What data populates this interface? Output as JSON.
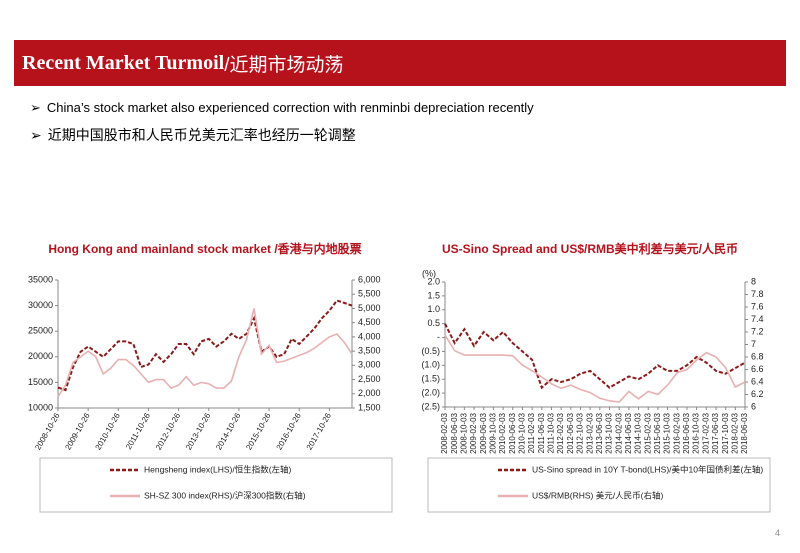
{
  "header": {
    "title_en": "Recent Market Turmoil",
    "title_cn": " /近期市场动荡"
  },
  "bullets": [
    "China’s stock market also experienced correction with renminbi depreciation recently",
    "近期中国股市和人民币兑美元汇率也经历一轮调整"
  ],
  "page_number": "4",
  "chart_data": [
    {
      "type": "line",
      "title": "Hong Kong and mainland  stock market /香港与内地股票",
      "categories": [
        "2008-10-26",
        null,
        null,
        null,
        "2009-10-26",
        null,
        null,
        null,
        "2010-10-26",
        null,
        null,
        null,
        "2011-10-26",
        null,
        null,
        null,
        "2012-10-26",
        null,
        null,
        null,
        "2013-10-26",
        null,
        null,
        null,
        "2014-10-26",
        null,
        null,
        null,
        "2015-10-26",
        null,
        null,
        null,
        "2016-10-26",
        null,
        null,
        null,
        "2017-10-26",
        null,
        null,
        null
      ],
      "series": [
        {
          "name": "Hengsheng index(LHS)/恒生指数(左轴)",
          "color": "#8b1a1a",
          "dashed": true,
          "values": [
            14000,
            13500,
            18000,
            21000,
            22000,
            21000,
            20000,
            21500,
            23000,
            23000,
            22500,
            18000,
            18500,
            20500,
            19000,
            20500,
            22500,
            22500,
            20500,
            23000,
            23500,
            22000,
            23000,
            24500,
            23500,
            24500,
            27500,
            21000,
            22000,
            20000,
            20500,
            23500,
            22500,
            24000,
            25500,
            27500,
            29000,
            31000,
            30500,
            30000
          ]
        },
        {
          "name": "SH-SZ 300 index(RHS)/沪深300指数(右轴)",
          "color": "#e8b0b0",
          "axis": "y2",
          "values": [
            1900,
            2300,
            3100,
            3300,
            3500,
            3300,
            2700,
            2900,
            3200,
            3200,
            3000,
            2700,
            2400,
            2500,
            2500,
            2200,
            2300,
            2600,
            2300,
            2400,
            2350,
            2200,
            2200,
            2450,
            3300,
            3900,
            5000,
            3400,
            3700,
            3100,
            3150,
            3250,
            3350,
            3450,
            3600,
            3800,
            4000,
            4100,
            3800,
            3400
          ]
        }
      ],
      "ylim": [
        10000,
        35000
      ],
      "yticks": [
        10000,
        15000,
        20000,
        25000,
        30000,
        35000
      ],
      "y2lim": [
        1500,
        6000
      ],
      "y2ticks": [
        {
          "value": 1500,
          "label": "1,500"
        },
        {
          "value": 2000,
          "label": "2,000"
        },
        {
          "value": 2500,
          "label": "2,500"
        },
        {
          "value": 3000,
          "label": "3,000"
        },
        {
          "value": 3500,
          "label": "3,500"
        },
        {
          "value": 4000,
          "label": "4,000"
        },
        {
          "value": 4500,
          "label": "4,500"
        },
        {
          "value": 5000,
          "label": "5,000"
        },
        {
          "value": 5500,
          "label": "5,500"
        },
        {
          "value": 6000,
          "label": "6,000"
        }
      ],
      "grid": false
    },
    {
      "type": "line",
      "title": "US-Sino Spread and US$/RMB美中利差与美元/人民币",
      "ylabel": "(%)",
      "categories": [
        "2008-02-03",
        "2008-06-03",
        "2008-10-03",
        "2009-02-03",
        "2009-06-03",
        "2009-10-03",
        "2010-02-03",
        "2010-06-03",
        "2010-10-03",
        "2011-02-03",
        "2011-06-03",
        "2011-10-03",
        "2012-02-03",
        "2012-06-03",
        "2012-10-03",
        "2013-02-03",
        "2013-06-03",
        "2013-10-03",
        "2014-02-03",
        "2014-06-03",
        "2014-10-03",
        "2015-02-03",
        "2015-06-03",
        "2015-10-03",
        "2016-02-03",
        "2016-06-03",
        "2016-10-03",
        "2017-02-03",
        "2017-06-03",
        "2017-10-03",
        "2018-02-03",
        "2018-06-03"
      ],
      "series": [
        {
          "name": "US-Sino spread in 10Y T-bond(LHS)/美中10年国债利差(左轴)",
          "color": "#8b1a1a",
          "dashed": true,
          "values": [
            0.5,
            -0.2,
            0.3,
            -0.3,
            0.2,
            -0.1,
            0.2,
            -0.2,
            -0.5,
            -0.8,
            -1.8,
            -1.5,
            -1.6,
            -1.5,
            -1.3,
            -1.2,
            -1.5,
            -1.8,
            -1.6,
            -1.4,
            -1.5,
            -1.3,
            -1.0,
            -1.2,
            -1.2,
            -1.0,
            -0.7,
            -0.9,
            -1.2,
            -1.3,
            -1.1,
            -0.9
          ]
        },
        {
          "name": "US$/RMB(RHS) 美元/人民币(右轴)",
          "color": "#e8b0b0",
          "axis": "y2",
          "values": [
            7.15,
            6.9,
            6.83,
            6.83,
            6.83,
            6.83,
            6.83,
            6.82,
            6.67,
            6.58,
            6.48,
            6.37,
            6.3,
            6.35,
            6.28,
            6.23,
            6.14,
            6.1,
            6.08,
            6.25,
            6.13,
            6.25,
            6.2,
            6.35,
            6.55,
            6.6,
            6.75,
            6.87,
            6.8,
            6.63,
            6.32,
            6.4
          ]
        }
      ],
      "ylim": [
        -2.5,
        2.0
      ],
      "yticks": [
        {
          "value": 2.0,
          "label": "2.0"
        },
        {
          "value": 1.5,
          "label": "1.5"
        },
        {
          "value": 1.0,
          "label": "1.0"
        },
        {
          "value": 0.5,
          "label": "0.5"
        },
        {
          "value": 0,
          "label": "-"
        },
        {
          "value": -0.5,
          "label": "(0.5)"
        },
        {
          "value": -1.0,
          "label": "(1.0)"
        },
        {
          "value": -1.5,
          "label": "(1.5)"
        },
        {
          "value": -2.0,
          "label": "(2.0)"
        },
        {
          "value": -2.5,
          "label": "(2.5)"
        }
      ],
      "y2lim": [
        6,
        8
      ],
      "y2ticks": [
        6,
        6.2,
        6.4,
        6.6,
        6.8,
        7,
        7.2,
        7.4,
        7.6,
        7.8,
        8
      ],
      "grid": false
    }
  ]
}
